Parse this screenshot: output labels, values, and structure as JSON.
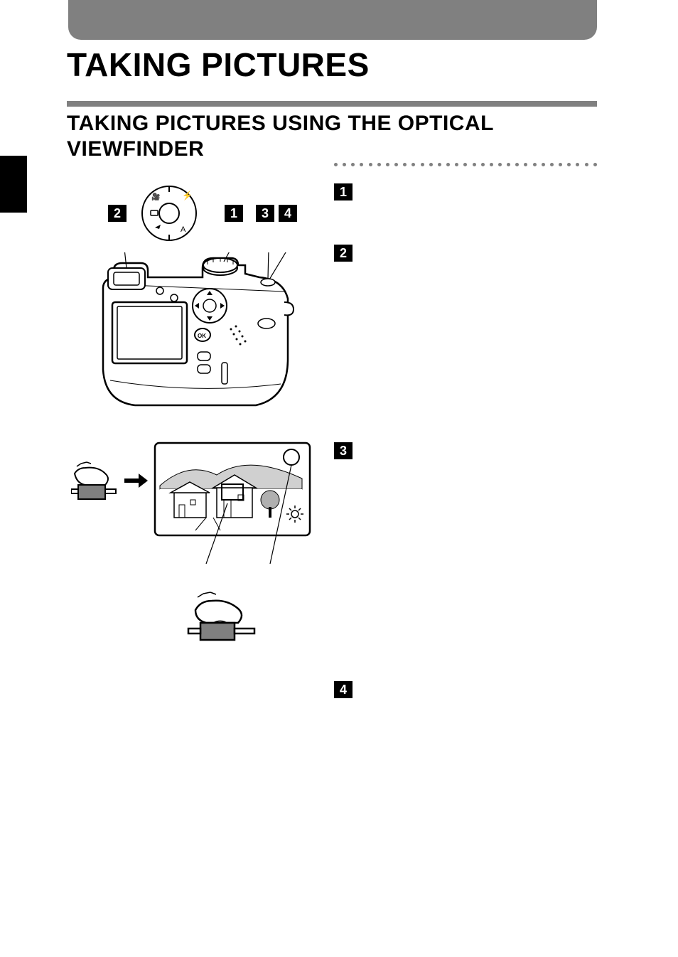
{
  "header": {
    "bar_color": "#808080"
  },
  "title": "TAKING PICTURES",
  "subtitle": "TAKING PICTURES USING THE OPTICAL VIEWFINDER",
  "callouts": {
    "top_left": "2",
    "top_mid": "1",
    "top_right_a": "3",
    "top_right_b": "4"
  },
  "steps": {
    "s1": "1",
    "s2": "2",
    "s3": "3",
    "s4": "4"
  },
  "colors": {
    "header_gray": "#808080",
    "black": "#000000",
    "white": "#ffffff"
  },
  "dots": {
    "count": 31
  }
}
